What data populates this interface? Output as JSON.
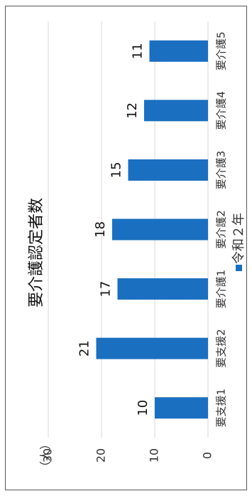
{
  "chart_data": {
    "type": "bar",
    "title": "要介護認定者数",
    "unit_label": "（人）",
    "categories": [
      "要支援1",
      "要支援2",
      "要介護1",
      "要介護2",
      "要介護3",
      "要介護4",
      "要介護5"
    ],
    "series": [
      {
        "name": "令和２年",
        "values": [
          10,
          21,
          17,
          18,
          15,
          12,
          11
        ],
        "color": "#1a6fc0"
      }
    ],
    "ylim": [
      0,
      30
    ],
    "yticks": [
      0,
      10,
      20,
      30
    ],
    "orientation": "rotated-90-clockwise",
    "grid": true,
    "legend": "bottom"
  }
}
